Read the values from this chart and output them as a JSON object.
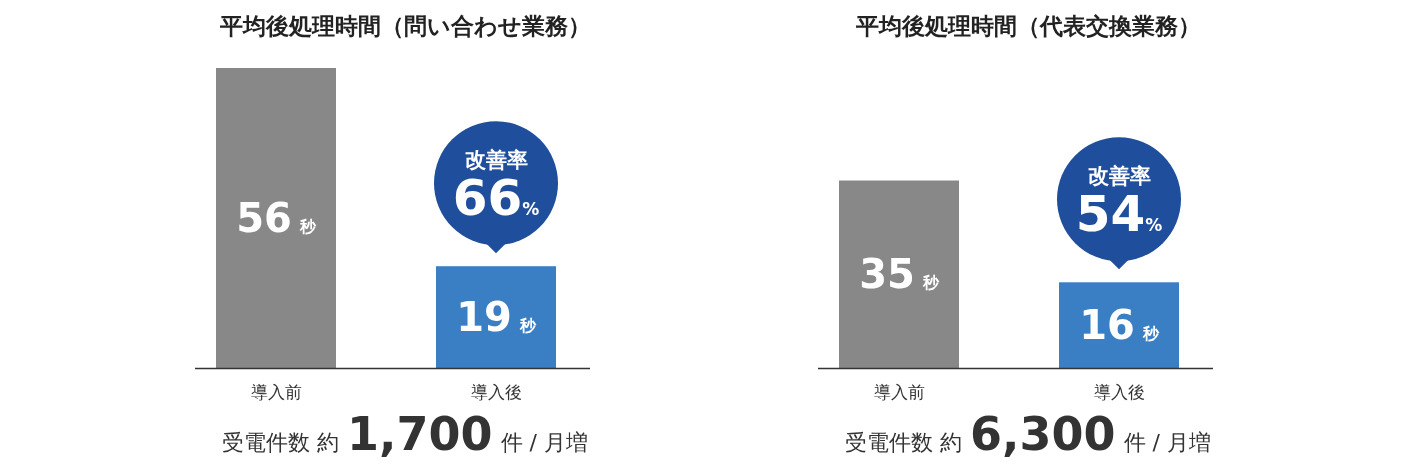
{
  "chart_data": [
    {
      "type": "bar",
      "title": "平均後処理時間（問い合わせ業務）",
      "categories": [
        "導入前",
        "導入後"
      ],
      "values": [
        56,
        19
      ],
      "colors": [
        "#888889",
        "#3a7fc4"
      ],
      "value_labels": [
        "56秒",
        "19秒"
      ],
      "annotations": [
        {
          "text": "改善率 66%",
          "x": "導入後",
          "y": 19
        },
        "受電件数 約**1,700**件 / 月増"
      ]
    },
    {
      "type": "bar",
      "title": "平均後処理時間（代表交換業務）",
      "categories": [
        "導入前",
        "導入後"
      ],
      "values": [
        35,
        16
      ],
      "colors": [
        "#888889",
        "#3a7fc4"
      ],
      "value_labels": [
        "35秒",
        "16秒"
      ],
      "annotations": [
        {
          "text": "改善率 54%",
          "x": "導入後",
          "y": 16
        },
        "受電件数 約**6,300**件 / 月増"
      ]
    }
  ]
}
